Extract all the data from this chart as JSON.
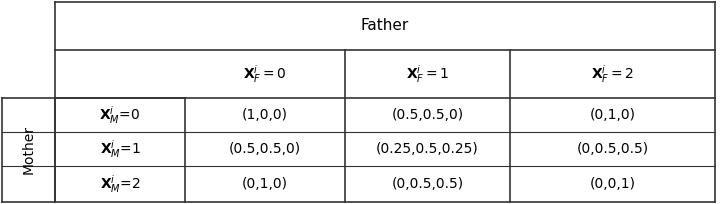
{
  "bg_color": "#ffffff",
  "border_color": "#333333",
  "father_header": "Father",
  "mother_label": "Mother",
  "col_headers": [
    "$\\mathbf{X}_{F}^{i} = 0$",
    "$\\mathbf{X}_{F}^{i} = 1$",
    "$\\mathbf{X}_{F}^{i} = 2$"
  ],
  "row_headers": [
    "$\\mathbf{X}_{M}^{i}$=0",
    "$\\mathbf{X}_{M}^{i}$=1",
    "$\\mathbf{X}_{M}^{i}$=2"
  ],
  "cell_data": [
    [
      "(1,0,0)",
      "(0.5,0.5,0)",
      "(0,1,0)"
    ],
    [
      "(0.5,0.5,0)",
      "(0.25,0.5,0.25)",
      "(0,0.5,0.5)"
    ],
    [
      "(0,1,0)",
      "(0,0.5,0.5)",
      "(0,0,1)"
    ]
  ],
  "figsize": [
    7.2,
    2.04
  ],
  "dpi": 100,
  "mother_fontsize": 10,
  "father_fontsize": 11,
  "colhdr_fontsize": 10,
  "rowhdr_fontsize": 10,
  "cell_fontsize": 10
}
